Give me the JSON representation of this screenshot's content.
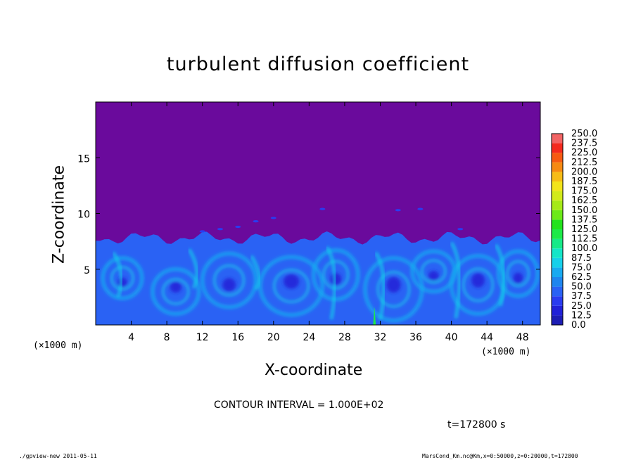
{
  "chart_data": {
    "type": "heatmap",
    "title": "turbulent diffusion coefficient",
    "xlabel": "X-coordinate",
    "ylabel": "Z-coordinate",
    "x_unit": "(×1000 m)",
    "xlim": [
      0,
      50
    ],
    "ylim": [
      0,
      20
    ],
    "x_ticks": [
      4,
      8,
      12,
      16,
      20,
      24,
      28,
      32,
      36,
      40,
      44,
      48
    ],
    "y_ticks": [
      5,
      10,
      15
    ],
    "colorbar": {
      "levels": [
        "0.0",
        "12.5",
        "25.0",
        "37.5",
        "50.0",
        "62.5",
        "75.0",
        "87.5",
        "100.0",
        "112.5",
        "125.0",
        "137.5",
        "150.0",
        "162.5",
        "175.0",
        "187.5",
        "200.0",
        "212.5",
        "225.0",
        "237.5",
        "250.0"
      ],
      "colors": [
        "#1d1db4",
        "#2121d8",
        "#2a3cf0",
        "#2a62f4",
        "#1f86ee",
        "#18aaf0",
        "#16d0ea",
        "#14e6c8",
        "#16ea88",
        "#1cea48",
        "#22e21c",
        "#6cea18",
        "#a6ea18",
        "#d2ea1a",
        "#f2e41a",
        "#f6bc16",
        "#f68a12",
        "#f65a12",
        "#f42a1e",
        "#f26464"
      ],
      "background": "#6a0a9c"
    },
    "turbulent_layer_top": 7.8,
    "contour_interval": "CONTOUR INTERVAL = 1.000E+02",
    "time_label": "t=172800 s"
  },
  "footer": {
    "left": "./gpview-new  2011-05-11",
    "right": "MarsCond_Km.nc@Km,x=0:50000,z=0:20000,t=172800"
  }
}
